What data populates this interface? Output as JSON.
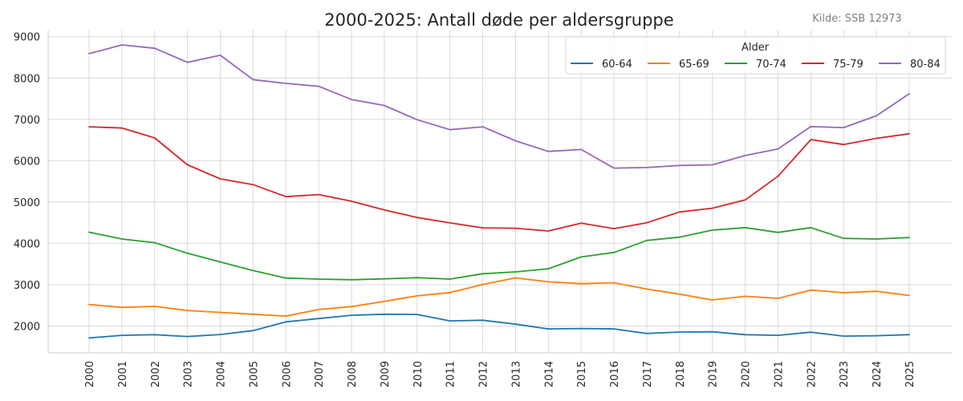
{
  "chart_data": {
    "type": "line",
    "title": "2000-2025: Antall døde per aldersgruppe",
    "source": "Kilde: SSB 12973",
    "xlabel": "",
    "ylabel": "",
    "x": [
      "2000",
      "2001",
      "2002",
      "2003",
      "2004",
      "2005",
      "2006",
      "2007",
      "2008",
      "2009",
      "2010",
      "2011",
      "2012",
      "2013",
      "2014",
      "2015",
      "2016",
      "2017",
      "2018",
      "2019",
      "2020",
      "2021",
      "2022",
      "2023",
      "2024",
      "2025"
    ],
    "ylim": [
      1350,
      9150
    ],
    "yticks": [
      2000,
      3000,
      4000,
      5000,
      6000,
      7000,
      8000,
      9000
    ],
    "grid": true,
    "legend": {
      "title": "Alder",
      "placement": "top-right"
    },
    "series": [
      {
        "name": "60-64",
        "color": "#1f77b4",
        "values": [
          1710,
          1775,
          1790,
          1745,
          1795,
          1890,
          2100,
          2180,
          2260,
          2285,
          2280,
          2125,
          2140,
          2045,
          1930,
          1940,
          1930,
          1820,
          1855,
          1860,
          1790,
          1775,
          1850,
          1755,
          1765,
          1790
        ]
      },
      {
        "name": "65-69",
        "color": "#ff7f0e",
        "values": [
          2520,
          2450,
          2475,
          2375,
          2330,
          2285,
          2240,
          2400,
          2470,
          2595,
          2730,
          2810,
          3005,
          3165,
          3070,
          3025,
          3045,
          2895,
          2770,
          2630,
          2720,
          2670,
          2870,
          2805,
          2840,
          2740
        ]
      },
      {
        "name": "70-74",
        "color": "#2ca02c",
        "values": [
          4270,
          4105,
          4015,
          3760,
          3550,
          3340,
          3160,
          3135,
          3120,
          3140,
          3170,
          3135,
          3265,
          3310,
          3385,
          3670,
          3780,
          4070,
          4150,
          4320,
          4380,
          4265,
          4380,
          4120,
          4105,
          4140
        ]
      },
      {
        "name": "75-79",
        "color": "#d62728",
        "values": [
          6820,
          6790,
          6550,
          5900,
          5560,
          5420,
          5130,
          5180,
          5020,
          4810,
          4625,
          4495,
          4375,
          4365,
          4300,
          4490,
          4355,
          4500,
          4760,
          4850,
          5050,
          5625,
          6510,
          6390,
          6540,
          6650
        ]
      },
      {
        "name": "80-84",
        "color": "#9467bd",
        "values": [
          8590,
          8800,
          8720,
          8380,
          8550,
          7960,
          7870,
          7800,
          7480,
          7335,
          6990,
          6750,
          6820,
          6480,
          6225,
          6270,
          5820,
          5835,
          5885,
          5900,
          6125,
          6285,
          6825,
          6800,
          7085,
          7620
        ]
      }
    ]
  }
}
